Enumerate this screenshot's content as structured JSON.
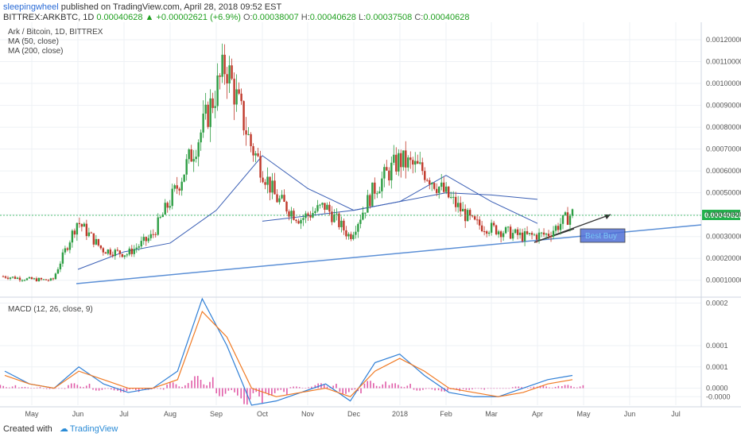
{
  "header": {
    "author": "sleepingwheel",
    "published": "published on TradingView.com, April 28, 2018 09:52 EST",
    "symbol": "BITTREX:ARKBTC, 1D",
    "last": "0.00040628",
    "change": "+0.00002621 (+6.9%)",
    "o_label": "O:",
    "o": "0.00038007",
    "h_label": "H:",
    "h": "0.00040628",
    "l_label": "L:",
    "l": "0.00037508",
    "c_label": "C:",
    "c": "0.00040628"
  },
  "legend": {
    "title": "Ark / Bitcoin, 1D, BITTREX",
    "ma50": "MA (50, close)",
    "ma200": "MA (200, close)",
    "macd": "MACD (12, 26, close, 9)"
  },
  "annotation": {
    "best_buy": "Best Buy"
  },
  "footer": {
    "created": "Created with",
    "brand": "TradingView"
  },
  "colors": {
    "up": "#2e9e44",
    "down": "#c0392b",
    "ma": "#3a5fb5",
    "trend": "#5b8fd6",
    "macd": "#2f7fd6",
    "signal": "#f07a24",
    "hist": "#e05ca8",
    "price_tag": "#22b14c"
  },
  "chart_data": [
    {
      "type": "candlestick",
      "title": "Ark / Bitcoin, 1D, BITTREX",
      "x_ticks": [
        "May",
        "Jun",
        "Jul",
        "Aug",
        "Sep",
        "Oct",
        "Nov",
        "Dec",
        "2018",
        "Feb",
        "Mar",
        "Apr",
        "May",
        "Jun",
        "Jul"
      ],
      "y_ticks": [
        "0.00010000",
        "0.00020000",
        "0.00030000",
        "0.00040000",
        "0.00050000",
        "0.00060000",
        "0.00070000",
        "0.00080000",
        "0.00090000",
        "0.00100000",
        "0.00110000",
        "0.00120000"
      ],
      "ylim": [
        3e-05,
        0.00128
      ],
      "current_price": "0.00040628",
      "close_series": [
        {
          "month": "May",
          "close": 0.000118
        },
        {
          "month": "May",
          "close": 0.000105
        },
        {
          "month": "Jun",
          "close": 0.0001
        },
        {
          "month": "Jun",
          "close": 0.00037
        },
        {
          "month": "Jul",
          "close": 0.00024
        },
        {
          "month": "Jul",
          "close": 0.00022
        },
        {
          "month": "Aug",
          "close": 0.0003
        },
        {
          "month": "Aug",
          "close": 0.00052
        },
        {
          "month": "Sep",
          "close": 0.00078
        },
        {
          "month": "Sep",
          "close": 0.00109
        },
        {
          "month": "Oct",
          "close": 0.00072
        },
        {
          "month": "Oct",
          "close": 0.00048
        },
        {
          "month": "Nov",
          "close": 0.00038
        },
        {
          "month": "Nov",
          "close": 0.00044
        },
        {
          "month": "Dec",
          "close": 0.0003
        },
        {
          "month": "Dec",
          "close": 0.00052
        },
        {
          "month": "2018",
          "close": 0.00065
        },
        {
          "month": "2018",
          "close": 0.0006
        },
        {
          "month": "Feb",
          "close": 0.00048
        },
        {
          "month": "Feb",
          "close": 0.00036
        },
        {
          "month": "Mar",
          "close": 0.00033
        },
        {
          "month": "Mar",
          "close": 0.0003
        },
        {
          "month": "Apr",
          "close": 0.00031
        },
        {
          "month": "Apr",
          "close": 0.000406
        }
      ],
      "ma50": [
        {
          "month": "Jun",
          "value": 0.00015
        },
        {
          "month": "Jul",
          "value": 0.00023
        },
        {
          "month": "Aug",
          "value": 0.00027
        },
        {
          "month": "Sep",
          "value": 0.00042
        },
        {
          "month": "Oct",
          "value": 0.00067
        },
        {
          "month": "Nov",
          "value": 0.00052
        },
        {
          "month": "Dec",
          "value": 0.00042
        },
        {
          "month": "2018",
          "value": 0.00046
        },
        {
          "month": "Feb",
          "value": 0.00058
        },
        {
          "month": "Mar",
          "value": 0.00046
        },
        {
          "month": "Apr",
          "value": 0.00036
        }
      ],
      "ma200": [
        {
          "month": "Oct",
          "value": 0.00037
        },
        {
          "month": "Dec",
          "value": 0.00042
        },
        {
          "month": "2018",
          "value": 0.00046
        },
        {
          "month": "Feb",
          "value": 0.0005
        },
        {
          "month": "Mar",
          "value": 0.00049
        },
        {
          "month": "Apr",
          "value": 0.00047
        }
      ]
    },
    {
      "type": "line",
      "title": "MACD (12, 26, close, 9)",
      "y_ticks": [
        "-0.0000",
        "0.0000",
        "0.0001",
        "0.0001",
        "0.0002"
      ],
      "ylim": [
        -4e-05,
        0.00021
      ],
      "series": [
        {
          "name": "MACD",
          "values": [
            4e-05,
            1e-05,
            0.0,
            5e-05,
            1e-05,
            -1e-05,
            0.0,
            4e-05,
            0.00021,
            0.0001,
            -4e-05,
            -3e-05,
            -1e-05,
            1e-05,
            -3e-05,
            6e-05,
            8e-05,
            3e-05,
            -1e-05,
            -2e-05,
            -2e-05,
            0.0,
            2e-05,
            3e-05
          ]
        },
        {
          "name": "Signal",
          "values": [
            3e-05,
            1e-05,
            0.0,
            4e-05,
            2e-05,
            0.0,
            0.0,
            2e-05,
            0.00018,
            0.00012,
            0.0,
            -2e-05,
            -1e-05,
            0.0,
            -2e-05,
            4e-05,
            7e-05,
            4e-05,
            0.0,
            -1e-05,
            -2e-05,
            -1e-05,
            1e-05,
            2e-05
          ]
        }
      ],
      "histogram": [
        8e-06,
        3e-06,
        -2e-06,
        1.2e-05,
        -6e-06,
        -1e-05,
        -4e-06,
        1.4e-05,
        3e-05,
        -2e-05,
        -4e-05,
        -1.8e-05,
        4e-06,
        1.2e-05,
        -1.4e-05,
        1.8e-05,
        1.2e-05,
        -6e-06,
        -8e-06,
        -4e-06,
        0.0,
        4e-06,
        6e-06,
        8e-06
      ]
    }
  ]
}
